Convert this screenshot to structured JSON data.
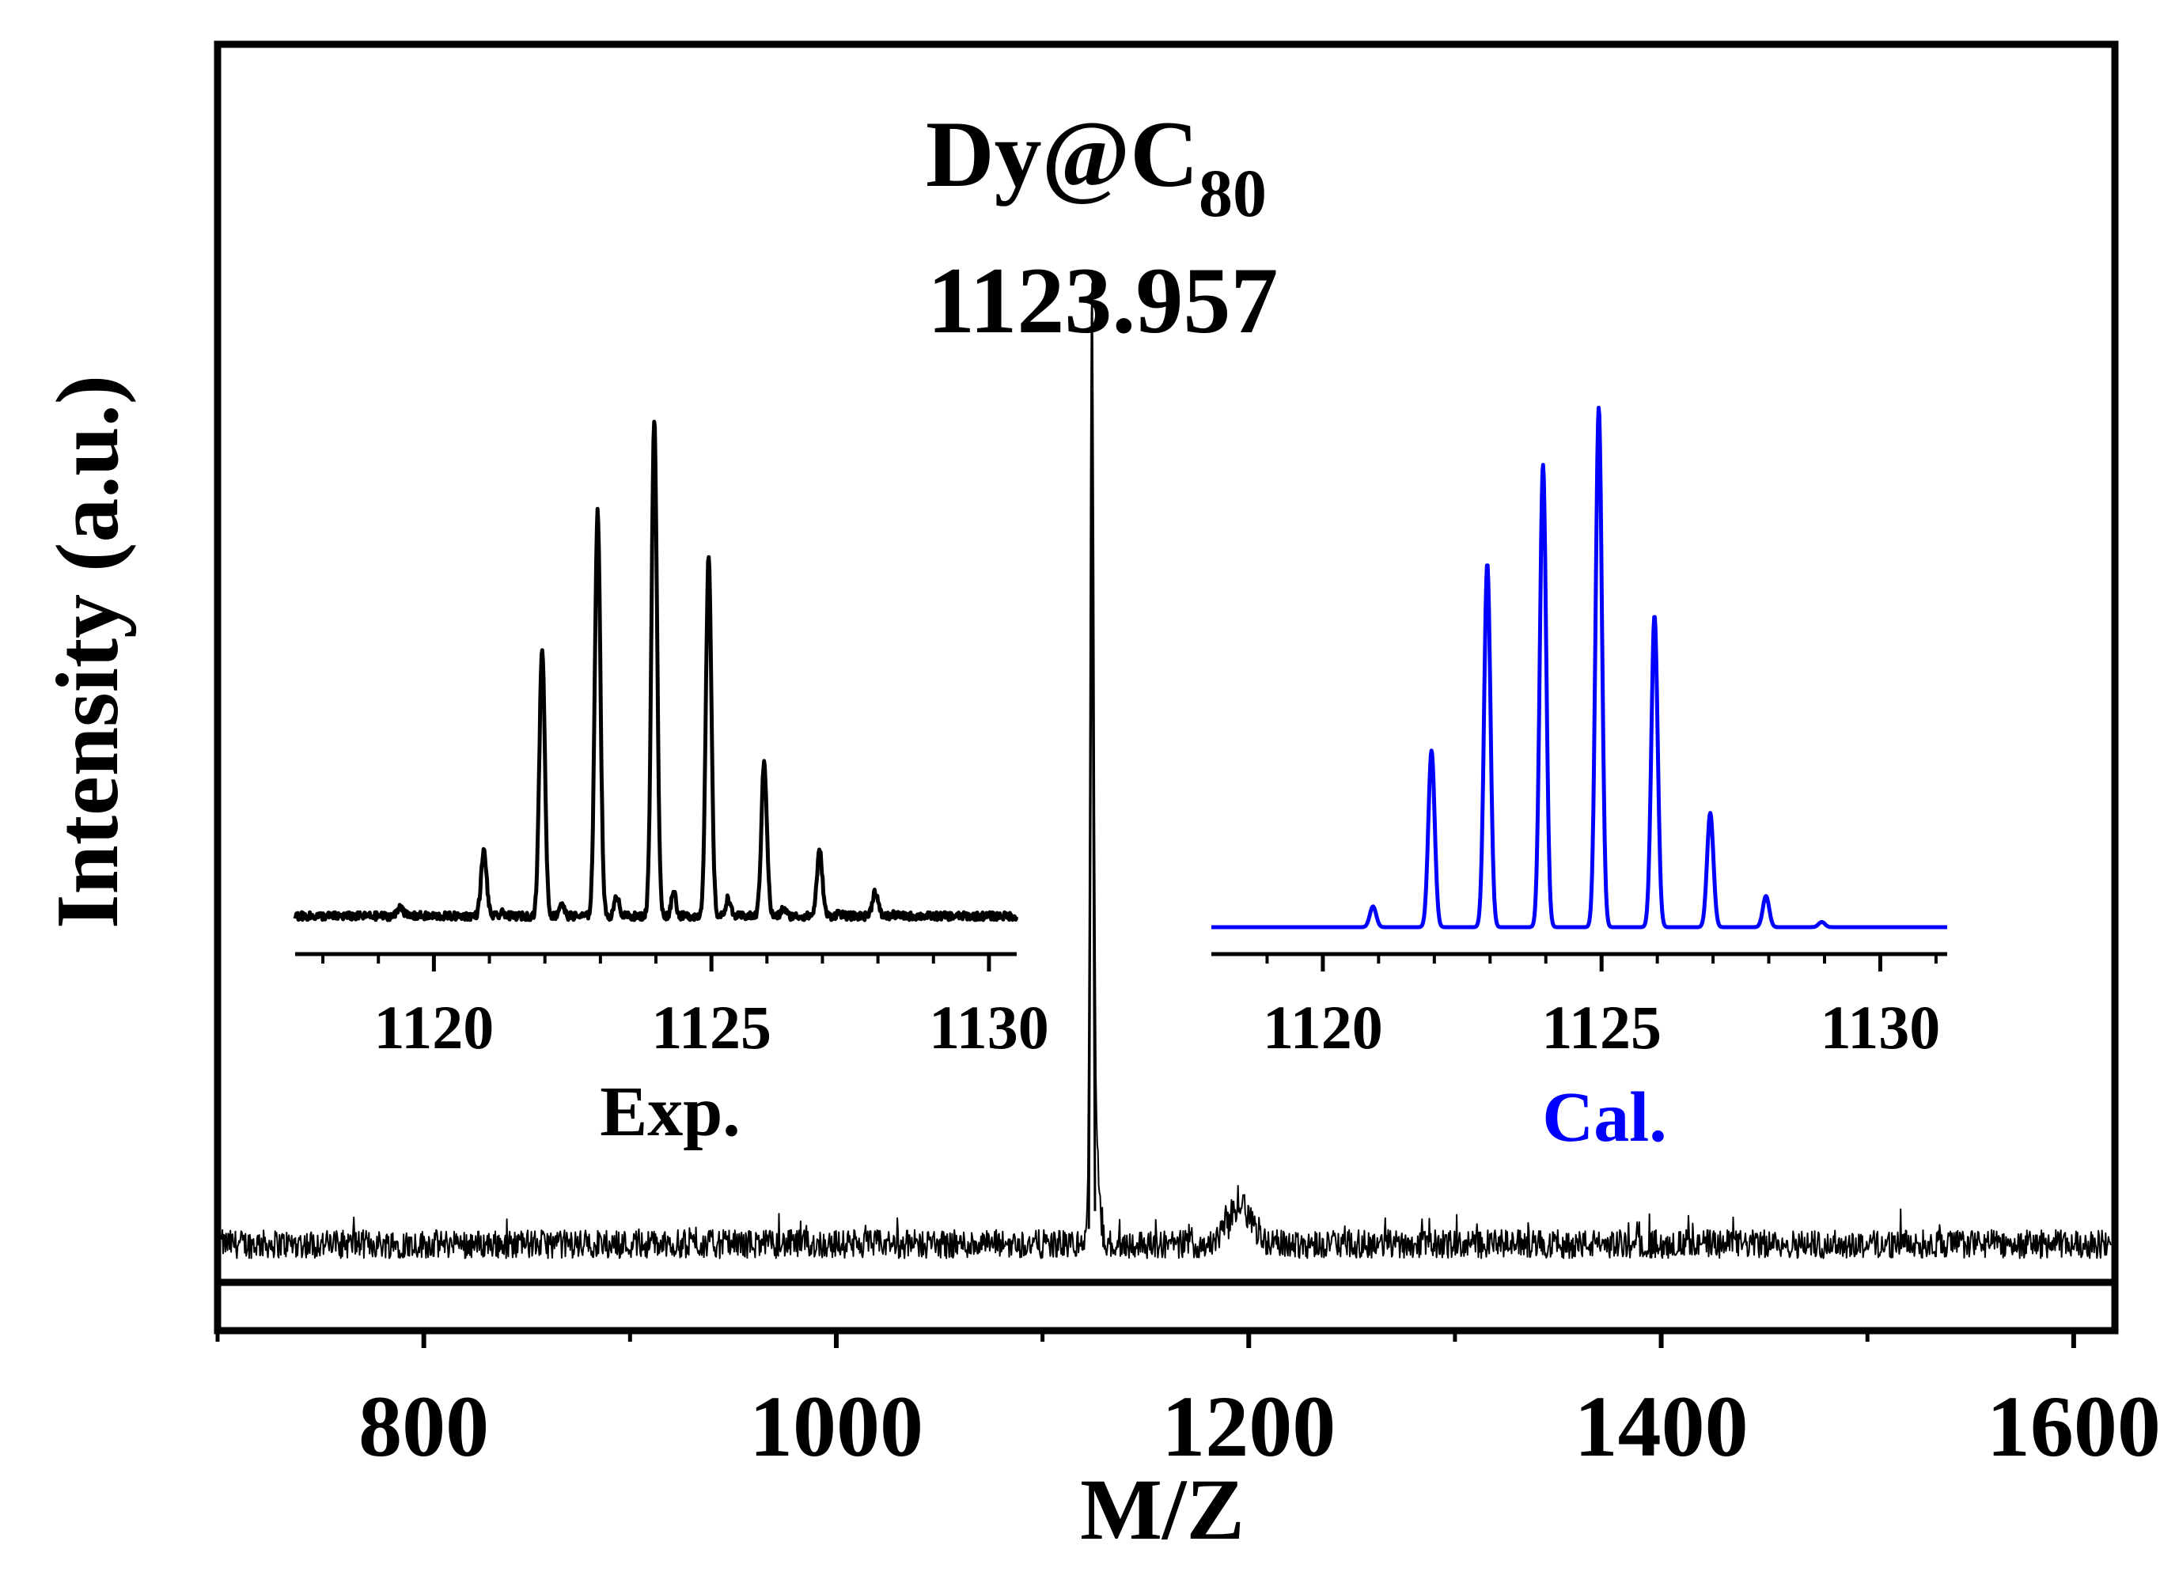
{
  "colors": {
    "experimental": "#000000",
    "calculated": "#0000ff",
    "axis": "#000000",
    "background": "#ffffff"
  },
  "chart_data": [
    {
      "name": "main-spectrum",
      "type": "line",
      "title": "",
      "xlabel": "M/Z",
      "ylabel": "Intensity (a.u.)",
      "xlim": [
        700,
        1620
      ],
      "ylim": [
        0,
        105
      ],
      "xticks": [
        800,
        1000,
        1200,
        1400,
        1600
      ],
      "xticks_minor": [
        700,
        900,
        1100,
        1300,
        1500
      ],
      "annotation": {
        "formula": "Dy@C",
        "subscript": "80",
        "value": "1123.957"
      },
      "noise_baseline": 4.3,
      "noise_amplitude": 1.6,
      "peaks": [
        {
          "x": 1123.957,
          "y": 100,
          "width": 1.2
        },
        {
          "x": 1125.5,
          "y": 12,
          "width": 2.5
        },
        {
          "x": 1196,
          "y": 5,
          "width": 8
        }
      ]
    },
    {
      "name": "inset-experimental",
      "type": "line",
      "label": "Exp.",
      "xlim": [
        1117.5,
        1130.5
      ],
      "ylim": [
        0,
        100
      ],
      "xticks": [
        1120,
        1125,
        1130
      ],
      "xticks_minor": [
        1118,
        1119,
        1121,
        1122,
        1123,
        1124,
        1126,
        1127,
        1128,
        1129
      ],
      "peaks": [
        {
          "x": 1119.4,
          "y": 2
        },
        {
          "x": 1120.9,
          "y": 13
        },
        {
          "x": 1121.95,
          "y": 54
        },
        {
          "x": 1122.95,
          "y": 82
        },
        {
          "x": 1123.97,
          "y": 100
        },
        {
          "x": 1124.95,
          "y": 72
        },
        {
          "x": 1125.95,
          "y": 31
        },
        {
          "x": 1126.95,
          "y": 13
        },
        {
          "x": 1127.95,
          "y": 5
        }
      ]
    },
    {
      "name": "inset-calculated",
      "type": "line",
      "label": "Cal.",
      "xlim": [
        1118,
        1131.2
      ],
      "ylim": [
        0,
        100
      ],
      "xticks": [
        1120,
        1125,
        1130
      ],
      "xticks_minor": [
        1119,
        1121,
        1122,
        1123,
        1124,
        1126,
        1127,
        1128,
        1129,
        1131
      ],
      "peaks": [
        {
          "x": 1120.9,
          "y": 4
        },
        {
          "x": 1121.95,
          "y": 34
        },
        {
          "x": 1122.95,
          "y": 70
        },
        {
          "x": 1123.95,
          "y": 89
        },
        {
          "x": 1124.95,
          "y": 100
        },
        {
          "x": 1125.95,
          "y": 60
        },
        {
          "x": 1126.95,
          "y": 22
        },
        {
          "x": 1127.95,
          "y": 6
        },
        {
          "x": 1128.95,
          "y": 1
        }
      ]
    }
  ]
}
